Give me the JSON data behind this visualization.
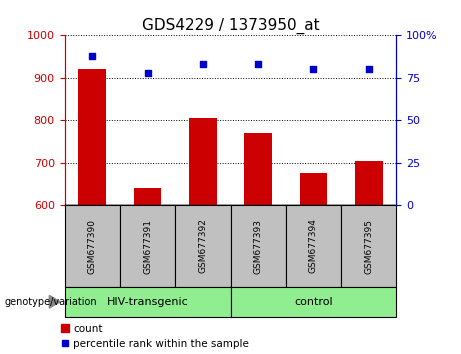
{
  "title": "GDS4229 / 1373950_at",
  "samples": [
    "GSM677390",
    "GSM677391",
    "GSM677392",
    "GSM677393",
    "GSM677394",
    "GSM677395"
  ],
  "counts": [
    920,
    640,
    805,
    770,
    675,
    705
  ],
  "percentile_ranks": [
    88,
    78,
    83,
    83,
    80,
    80
  ],
  "group1_label": "HIV-transgenic",
  "group2_label": "control",
  "group1_indices": [
    0,
    1,
    2
  ],
  "group2_indices": [
    3,
    4,
    5
  ],
  "ylim_left": [
    600,
    1000
  ],
  "ylim_right": [
    0,
    100
  ],
  "yticks_left": [
    600,
    700,
    800,
    900,
    1000
  ],
  "yticks_right": [
    0,
    25,
    50,
    75,
    100
  ],
  "bar_color": "#CC0000",
  "dot_color": "#0000CC",
  "bar_width": 0.5,
  "background_color": "#ffffff",
  "grid_color": "#000000",
  "left_tick_color": "#CC0000",
  "right_tick_color": "#0000CC",
  "sample_box_color": "#C0C0C0",
  "group_box_color": "#90EE90",
  "genotype_label": "genotype/variation",
  "legend_count_label": "count",
  "legend_pct_label": "percentile rank within the sample",
  "title_fontsize": 11,
  "tick_fontsize": 8,
  "sample_fontsize": 6.5,
  "group_fontsize": 8,
  "legend_fontsize": 7.5
}
